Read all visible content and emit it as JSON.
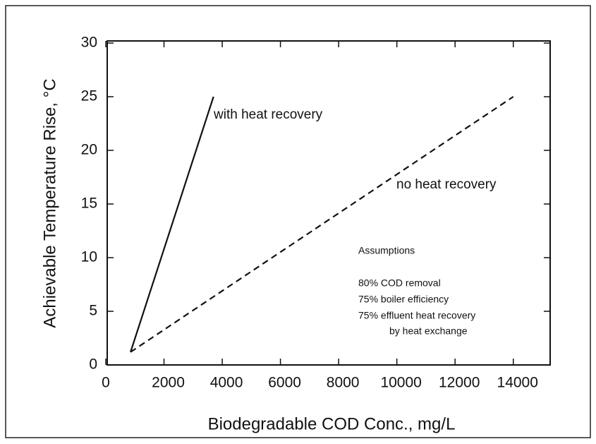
{
  "chart_data": {
    "type": "line",
    "x_label": "Biodegradable COD Conc., mg/L",
    "y_label": "Achievable Temperature Rise, °C",
    "xlim": [
      0,
      15000
    ],
    "xticks": [
      0,
      2000,
      4000,
      6000,
      8000,
      10000,
      12000,
      14000
    ],
    "ylim": [
      0,
      30
    ],
    "yticks": [
      0,
      5,
      10,
      15,
      20,
      25,
      30
    ],
    "series": [
      {
        "name": "with heat recovery",
        "color": "#111111",
        "dash": false,
        "x": [
          850,
          3700
        ],
        "values": [
          1.2,
          25
        ]
      },
      {
        "name": "no heat recovery",
        "color": "#111111",
        "dash": true,
        "x": [
          850,
          14000
        ],
        "values": [
          1.2,
          25
        ]
      }
    ],
    "annotations": [
      "Assumptions",
      "80% COD removal",
      "75% boiler efficiency",
      "75% effluent heat recovery",
      "by heat exchange"
    ]
  }
}
